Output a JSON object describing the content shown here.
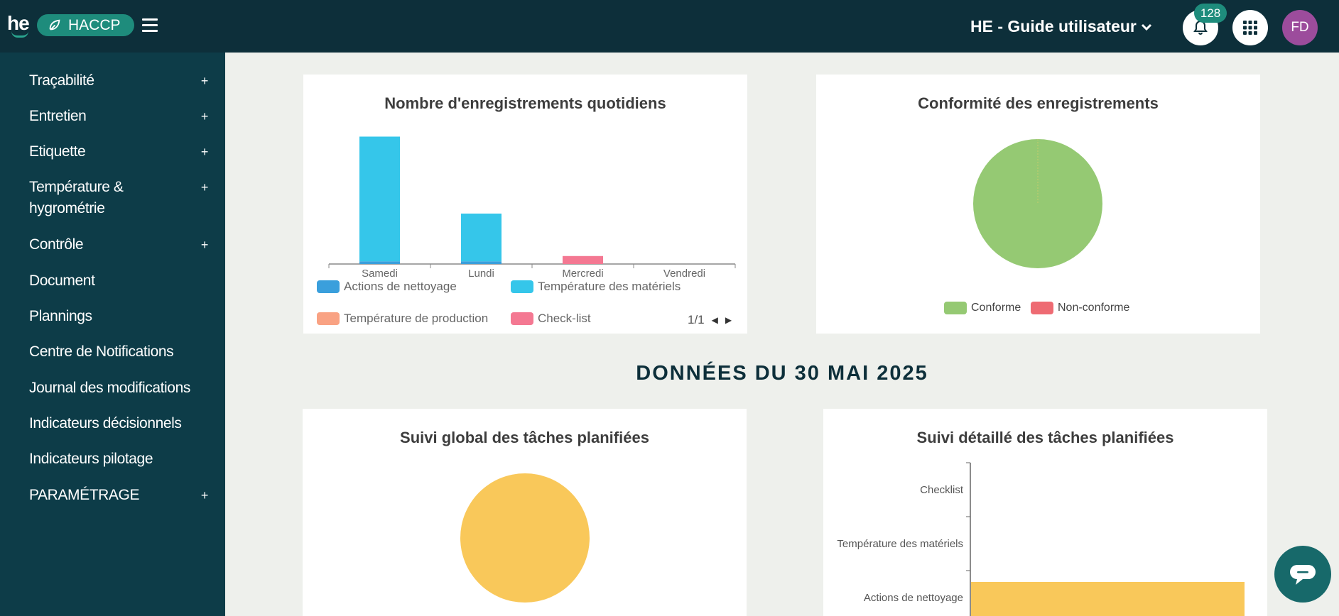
{
  "header": {
    "logo_text": "he",
    "app_name": "HACCP",
    "org_title": "HE - Guide utilisateur",
    "notification_count": "128",
    "avatar_initials": "FD"
  },
  "sidebar": {
    "items": [
      {
        "label": "Traçabilité",
        "plus": "+"
      },
      {
        "label": "Entretien",
        "plus": "+"
      },
      {
        "label": "Etiquette",
        "plus": "+"
      },
      {
        "label": "Température & hygrométrie",
        "plus": "+"
      },
      {
        "label": "Contrôle",
        "plus": "+"
      },
      {
        "label": "Document",
        "plus": ""
      },
      {
        "label": "Plannings",
        "plus": ""
      },
      {
        "label": "Centre de Notifications",
        "plus": ""
      },
      {
        "label": "Journal des modifications",
        "plus": ""
      },
      {
        "label": "Indicateurs décisionnels",
        "plus": ""
      },
      {
        "label": "Indicateurs pilotage",
        "plus": ""
      },
      {
        "label": "PARAMÉTRAGE",
        "plus": "+"
      }
    ]
  },
  "section_title": "DONNÉES DU 30 MAI 2025",
  "colors": {
    "nettoyage": "#3a9fdc",
    "materiels": "#35c6ea",
    "production": "#f9a283",
    "checklist": "#f47892",
    "conforme": "#95c973",
    "non_conforme": "#ee6b73",
    "planned": "#f9c85a"
  },
  "pager": "1/1",
  "chart_data": [
    {
      "type": "bar",
      "title": "Nombre d'enregistrements quotidiens",
      "categories": [
        "Samedi",
        "Lundi",
        "Mercredi",
        "Vendredi"
      ],
      "ylim": [
        0,
        50
      ],
      "stacked": true,
      "series": [
        {
          "name": "Actions de nettoyage",
          "values": [
            1,
            1,
            0,
            0
          ]
        },
        {
          "name": "Température des matériels",
          "values": [
            47,
            18,
            0,
            0
          ]
        },
        {
          "name": "Température de production",
          "values": [
            0,
            0,
            0,
            0
          ]
        },
        {
          "name": "Check-list",
          "values": [
            0,
            0,
            3,
            0
          ]
        }
      ],
      "legend_position": "bottom"
    },
    {
      "type": "pie",
      "title": "Conformité des enregistrements",
      "labels": [
        "Conforme",
        "Non-conforme"
      ],
      "values": [
        100,
        0
      ],
      "legend_position": "bottom"
    },
    {
      "type": "pie",
      "title": "Suivi global des tâches planifiées",
      "labels": [
        ""
      ],
      "values": [
        100
      ]
    },
    {
      "type": "bar",
      "orientation": "horizontal",
      "title": "Suivi détaillé des tâches planifiées",
      "categories": [
        "Checklist",
        "Température des matériels",
        "Actions de nettoyage"
      ],
      "values": [
        0,
        0,
        100
      ]
    }
  ]
}
